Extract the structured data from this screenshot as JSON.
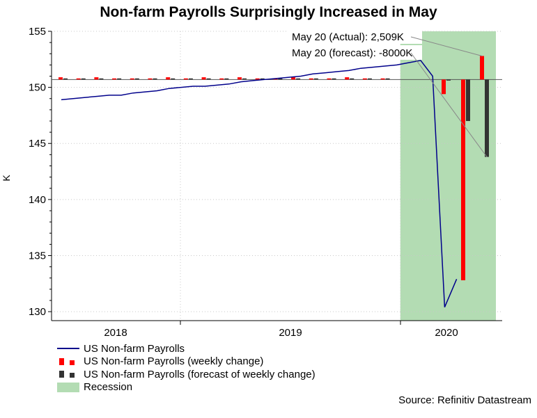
{
  "title": "Non-farm Payrolls Surprisingly Increased in May",
  "source": "Source: Refinitiv Datastream",
  "chart_data": {
    "type": "line",
    "title": "Non-farm Payrolls Surprisingly Increased in May",
    "ylabel": "K",
    "xlabel": "",
    "ylim": [
      129.2,
      155
    ],
    "yticks": [
      130,
      135,
      140,
      145,
      150,
      155
    ],
    "xticks": [
      "2018",
      "2019",
      "2020"
    ],
    "baseline": 150.7,
    "colors": {
      "line": "#00008b",
      "actual": "#ff0000",
      "forecast": "#333333",
      "recession": "#b3dcb3",
      "grid": "#c8c8c8"
    },
    "series": [
      {
        "name": "US Non-farm Payrolls",
        "type": "line",
        "values": [
          148.9,
          149.0,
          149.1,
          149.2,
          149.3,
          149.3,
          149.5,
          149.6,
          149.7,
          149.9,
          150.0,
          150.1,
          150.1,
          150.2,
          150.3,
          150.5,
          150.6,
          150.7,
          150.8,
          150.9,
          151.0,
          151.2,
          151.3,
          151.4,
          151.5,
          151.7,
          151.8,
          151.9,
          152.0,
          152.2,
          152.4,
          151.0,
          130.4,
          132.9
        ]
      },
      {
        "name": "US Non-farm Payrolls (weekly change)",
        "type": "bar",
        "values": [
          150.9,
          150.8,
          150.9,
          150.8,
          150.8,
          150.8,
          150.9,
          150.8,
          150.9,
          150.8,
          150.9,
          150.8,
          150.8,
          150.9,
          150.8,
          150.8,
          150.9,
          150.8,
          150.8,
          149.4,
          132.8,
          152.8
        ]
      },
      {
        "name": "US Non-farm Payrolls (forecast of weekly change)",
        "type": "bar",
        "values": [
          150.8,
          150.8,
          150.8,
          150.8,
          150.8,
          150.8,
          150.8,
          150.8,
          150.8,
          150.8,
          150.8,
          150.8,
          150.8,
          150.8,
          150.8,
          150.8,
          150.8,
          150.8,
          150.8,
          150.7,
          147.0,
          143.8
        ]
      }
    ],
    "recession": {
      "name": "Recession",
      "start_index": 28.3,
      "end_index": 35
    },
    "annotations": [
      {
        "text": "May 20 (Actual): 2,509K",
        "target_series": 1,
        "target_index": 21
      },
      {
        "text": "May 20 (forecast): -8000K",
        "target_series": 2,
        "target_index": 21
      }
    ]
  }
}
